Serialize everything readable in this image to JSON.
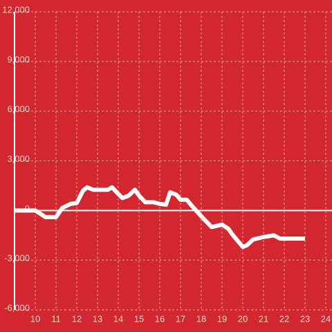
{
  "chart_data": {
    "type": "line",
    "x": [
      9,
      9.5,
      10,
      10.5,
      11,
      11.3,
      11.7,
      12,
      12.3,
      12.5,
      12.8,
      13,
      13.5,
      13.7,
      14,
      14.2,
      14.5,
      14.8,
      15,
      15.3,
      15.7,
      16,
      16.3,
      16.5,
      16.8,
      17,
      17.3,
      17.5,
      18,
      18.5,
      19,
      19.3,
      19.5,
      20,
      20.2,
      20.5,
      21,
      21.5,
      21.8,
      22,
      23
    ],
    "series": [
      {
        "color": "#ffffff",
        "values": [
          0,
          0,
          0,
          -400,
          -400,
          150,
          400,
          450,
          1200,
          1400,
          1250,
          1250,
          1250,
          1400,
          1000,
          750,
          900,
          1250,
          900,
          500,
          500,
          400,
          350,
          1100,
          950,
          650,
          650,
          350,
          -350,
          -1000,
          -850,
          -1100,
          -1450,
          -2200,
          -2100,
          -1750,
          -1600,
          -1500,
          -1700,
          -1700,
          -1700
        ]
      }
    ],
    "xlim": [
      9,
      24.3
    ],
    "xticks": [
      10,
      11,
      12,
      13,
      14,
      15,
      16,
      17,
      18,
      19,
      20,
      21,
      22,
      23,
      24
    ],
    "ylim": [
      -6000,
      12000
    ],
    "yticks": [
      {
        "value": -6000,
        "label": "-6,000"
      },
      {
        "value": -3000,
        "label": "-3,000"
      },
      0,
      {
        "value": 3000,
        "label": "3,000"
      },
      {
        "value": 6000,
        "label": "6,000"
      },
      {
        "value": 9000,
        "label": "9,000"
      },
      {
        "value": 12000,
        "label": "12,000"
      }
    ],
    "grid": true
  }
}
